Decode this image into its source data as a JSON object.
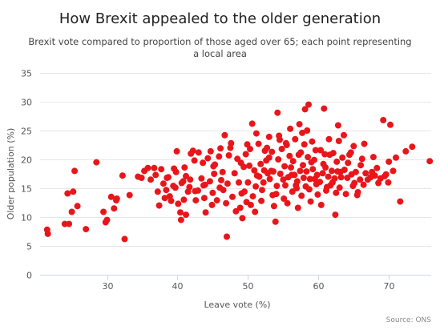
{
  "colors": {
    "point": "#e8161b"
  },
  "chart_data": {
    "type": "scatter",
    "title": "How Brexit appealed to the older generation",
    "subtitle_lines": [
      "Brexit vote compared to proportion of those aged over 65; each point representing",
      "a local area"
    ],
    "xlabel": "Leave vote (%)",
    "ylabel": "Older population (%)",
    "credit": "Source: ONS",
    "xlim": [
      20.5,
      76
    ],
    "ylim": [
      0,
      35
    ],
    "x_ticks": [
      30,
      40,
      50,
      60,
      70
    ],
    "y_ticks": [
      0,
      5,
      10,
      15,
      20,
      25,
      30,
      35
    ],
    "grid": {
      "horizontal": true,
      "vertical": false
    },
    "legend": "none",
    "points": [
      [
        21.5,
        7.8
      ],
      [
        21.6,
        7.1
      ],
      [
        24.0,
        8.8
      ],
      [
        24.4,
        14.1
      ],
      [
        24.6,
        8.8
      ],
      [
        25.0,
        10.9
      ],
      [
        25.2,
        14.4
      ],
      [
        25.4,
        18.0
      ],
      [
        25.8,
        11.9
      ],
      [
        27.0,
        7.9
      ],
      [
        28.5,
        19.5
      ],
      [
        29.5,
        10.9
      ],
      [
        29.8,
        9.1
      ],
      [
        30.0,
        9.5
      ],
      [
        30.6,
        13.5
      ],
      [
        31.0,
        11.5
      ],
      [
        31.3,
        12.9
      ],
      [
        31.4,
        13.2
      ],
      [
        32.2,
        17.2
      ],
      [
        32.5,
        6.2
      ],
      [
        33.2,
        13.8
      ],
      [
        34.9,
        16.8
      ],
      [
        35.3,
        18.0
      ],
      [
        35.8,
        18.5
      ],
      [
        36.2,
        16.5
      ],
      [
        36.7,
        18.5
      ],
      [
        37.4,
        12.0
      ],
      [
        37.7,
        18.3
      ],
      [
        38.0,
        15.8
      ],
      [
        38.2,
        13.3
      ],
      [
        38.5,
        16.8
      ],
      [
        38.9,
        13.6
      ],
      [
        39.1,
        12.8
      ],
      [
        39.5,
        18.4
      ],
      [
        39.7,
        15.1
      ],
      [
        39.9,
        21.4
      ],
      [
        40.1,
        12.3
      ],
      [
        40.4,
        10.8
      ],
      [
        40.5,
        9.5
      ],
      [
        40.8,
        16.2
      ],
      [
        41.2,
        17.1
      ],
      [
        41.2,
        10.4
      ],
      [
        41.5,
        14.4
      ],
      [
        41.8,
        16.5
      ],
      [
        42.2,
        21.5
      ],
      [
        42.5,
        14.5
      ],
      [
        43.0,
        21.2
      ],
      [
        43.4,
        16.7
      ],
      [
        43.7,
        15.5
      ],
      [
        44.0,
        10.8
      ],
      [
        44.3,
        20.2
      ],
      [
        44.6,
        16.2
      ],
      [
        45.2,
        17.5
      ],
      [
        45.3,
        19.1
      ],
      [
        45.6,
        12.9
      ],
      [
        46.0,
        15.1
      ],
      [
        46.4,
        17.8
      ],
      [
        46.7,
        24.2
      ],
      [
        47.0,
        6.6
      ],
      [
        47.5,
        22.0
      ],
      [
        48.3,
        11.0
      ],
      [
        48.7,
        16.0
      ],
      [
        49.0,
        19.4
      ],
      [
        49.2,
        9.8
      ],
      [
        49.5,
        14.4
      ],
      [
        49.8,
        12.6
      ],
      [
        50.3,
        21.8
      ],
      [
        50.6,
        26.2
      ],
      [
        51.0,
        10.9
      ],
      [
        51.3,
        17.2
      ],
      [
        51.8,
        19.2
      ],
      [
        52.2,
        16.0
      ],
      [
        52.7,
        22.0
      ],
      [
        53.0,
        20.3
      ],
      [
        53.3,
        18.0
      ],
      [
        53.5,
        13.8
      ],
      [
        53.9,
        9.2
      ],
      [
        54.2,
        28.1
      ],
      [
        54.5,
        23.4
      ],
      [
        55.0,
        16.5
      ],
      [
        55.5,
        22.5
      ],
      [
        56.2,
        17.3
      ],
      [
        56.8,
        15.5
      ],
      [
        57.2,
        20.8
      ],
      [
        57.7,
        24.6
      ],
      [
        58.1,
        28.7
      ],
      [
        58.6,
        29.5
      ],
      [
        59.0,
        19.5
      ],
      [
        59.5,
        16.6
      ],
      [
        60.3,
        21.6
      ],
      [
        60.8,
        28.8
      ],
      [
        61.2,
        15.2
      ],
      [
        61.6,
        20.8
      ],
      [
        62.0,
        16.0
      ],
      [
        62.4,
        10.4
      ],
      [
        62.8,
        25.9
      ],
      [
        63.1,
        17.8
      ],
      [
        63.6,
        24.2
      ],
      [
        64.2,
        19.4
      ],
      [
        64.6,
        21.2
      ],
      [
        65.1,
        15.9
      ],
      [
        65.5,
        13.8
      ],
      [
        66.0,
        19.0
      ],
      [
        66.5,
        22.7
      ],
      [
        67.0,
        16.5
      ],
      [
        67.6,
        17.8
      ],
      [
        68.3,
        18.5
      ],
      [
        69.2,
        26.8
      ],
      [
        69.6,
        17.4
      ],
      [
        70.2,
        26.0
      ],
      [
        70.6,
        18.0
      ],
      [
        71.0,
        20.3
      ],
      [
        71.6,
        12.7
      ],
      [
        72.4,
        21.4
      ],
      [
        73.3,
        22.2
      ],
      [
        75.8,
        19.7
      ],
      [
        41.9,
        21.0
      ],
      [
        38.7,
        16.9
      ],
      [
        36.9,
        17.3
      ],
      [
        34.4,
        17.0
      ],
      [
        40.9,
        13.0
      ],
      [
        42.9,
        14.6
      ],
      [
        43.9,
        15.6
      ],
      [
        45.1,
        18.8
      ],
      [
        46.2,
        16.4
      ],
      [
        47.1,
        15.8
      ],
      [
        48.1,
        17.6
      ],
      [
        49.4,
        18.7
      ],
      [
        50.0,
        16.0
      ],
      [
        50.2,
        18.9
      ],
      [
        50.9,
        18.1
      ],
      [
        51.1,
        15.3
      ],
      [
        51.6,
        17.0
      ],
      [
        52.3,
        18.1
      ],
      [
        52.8,
        17.6
      ],
      [
        53.1,
        16.6
      ],
      [
        53.6,
        17.9
      ],
      [
        54.1,
        15.4
      ],
      [
        54.6,
        17.5
      ],
      [
        55.2,
        18.8
      ],
      [
        55.7,
        16.9
      ],
      [
        56.1,
        18.6
      ],
      [
        56.6,
        17.3
      ],
      [
        57.0,
        16.2
      ],
      [
        57.4,
        18.0
      ],
      [
        57.9,
        16.8
      ],
      [
        58.3,
        17.9
      ],
      [
        58.8,
        16.6
      ],
      [
        59.2,
        18.3
      ],
      [
        59.8,
        17.3
      ],
      [
        60.2,
        16.1
      ],
      [
        60.6,
        17.6
      ],
      [
        61.0,
        18.6
      ],
      [
        61.4,
        17.0
      ],
      [
        61.9,
        18.0
      ],
      [
        62.3,
        16.7
      ],
      [
        62.7,
        17.9
      ],
      [
        63.2,
        16.9
      ],
      [
        63.7,
        18.2
      ],
      [
        64.1,
        16.8
      ],
      [
        64.7,
        17.4
      ],
      [
        65.3,
        17.8
      ],
      [
        65.9,
        16.5
      ],
      [
        66.7,
        17.6
      ],
      [
        67.4,
        16.9
      ],
      [
        68.0,
        17.2
      ],
      [
        68.8,
        16.7
      ],
      [
        69.4,
        17.1
      ],
      [
        53.4,
        21.3
      ],
      [
        54.8,
        21.8
      ],
      [
        55.9,
        20.6
      ],
      [
        57.5,
        21.2
      ],
      [
        58.5,
        20.4
      ],
      [
        59.6,
        21.6
      ],
      [
        60.9,
        20.9
      ],
      [
        62.1,
        21.1
      ],
      [
        63.4,
        20.3
      ],
      [
        64.4,
        20.8
      ],
      [
        55.4,
        22.8
      ],
      [
        56.7,
        23.5
      ],
      [
        58.0,
        22.6
      ],
      [
        59.1,
        23.1
      ],
      [
        51.5,
        22.7
      ],
      [
        52.4,
        21.5
      ],
      [
        49.7,
        20.9
      ],
      [
        48.5,
        20.1
      ],
      [
        47.3,
        20.7
      ],
      [
        45.9,
        20.5
      ],
      [
        44.7,
        21.4
      ],
      [
        43.6,
        19.4
      ],
      [
        42.4,
        19.8
      ],
      [
        41.0,
        18.6
      ],
      [
        39.8,
        17.8
      ],
      [
        54.0,
        14.0
      ],
      [
        55.1,
        13.2
      ],
      [
        56.3,
        14.4
      ],
      [
        57.6,
        13.7
      ],
      [
        58.7,
        14.8
      ],
      [
        59.9,
        13.9
      ],
      [
        61.1,
        14.6
      ],
      [
        62.5,
        14.2
      ],
      [
        63.9,
        14.0
      ],
      [
        65.6,
        14.3
      ],
      [
        52.0,
        14.7
      ],
      [
        50.7,
        13.6
      ],
      [
        49.1,
        14.1
      ],
      [
        47.8,
        13.5
      ],
      [
        46.5,
        14.7
      ],
      [
        45.0,
        14.2
      ],
      [
        43.8,
        13.3
      ],
      [
        42.6,
        12.9
      ],
      [
        53.7,
        11.9
      ],
      [
        55.6,
        12.4
      ],
      [
        57.1,
        11.6
      ],
      [
        58.9,
        12.7
      ],
      [
        60.4,
        12.1
      ],
      [
        48.9,
        11.6
      ],
      [
        50.4,
        12.1
      ],
      [
        51.9,
        12.8
      ],
      [
        44.9,
        12.1
      ],
      [
        46.9,
        12.4
      ],
      [
        56.4,
        19.7
      ],
      [
        57.8,
        19.0
      ],
      [
        59.4,
        19.9
      ],
      [
        60.7,
        19.2
      ],
      [
        62.6,
        19.6
      ],
      [
        66.2,
        20.1
      ],
      [
        67.8,
        20.4
      ],
      [
        70.0,
        19.6
      ],
      [
        52.6,
        19.8
      ],
      [
        54.3,
        20.0
      ],
      [
        49.9,
        22.6
      ],
      [
        47.6,
        22.8
      ],
      [
        46.1,
        21.9
      ],
      [
        51.2,
        24.5
      ],
      [
        53.0,
        23.9
      ],
      [
        54.4,
        24.1
      ],
      [
        56.0,
        25.3
      ],
      [
        57.3,
        26.1
      ],
      [
        58.4,
        25.0
      ],
      [
        61.5,
        23.5
      ],
      [
        62.9,
        23.2
      ],
      [
        65.0,
        22.3
      ],
      [
        55.3,
        15.5
      ],
      [
        56.9,
        15.0
      ],
      [
        58.2,
        15.3
      ],
      [
        59.7,
        15.7
      ],
      [
        61.7,
        15.5
      ],
      [
        63.0,
        15.1
      ],
      [
        64.9,
        15.4
      ],
      [
        66.4,
        15.6
      ],
      [
        68.5,
        15.9
      ],
      [
        69.9,
        16.0
      ],
      [
        38.4,
        14.7
      ],
      [
        37.2,
        14.4
      ],
      [
        39.4,
        15.4
      ],
      [
        40.6,
        15.9
      ],
      [
        41.7,
        15.2
      ]
    ]
  }
}
